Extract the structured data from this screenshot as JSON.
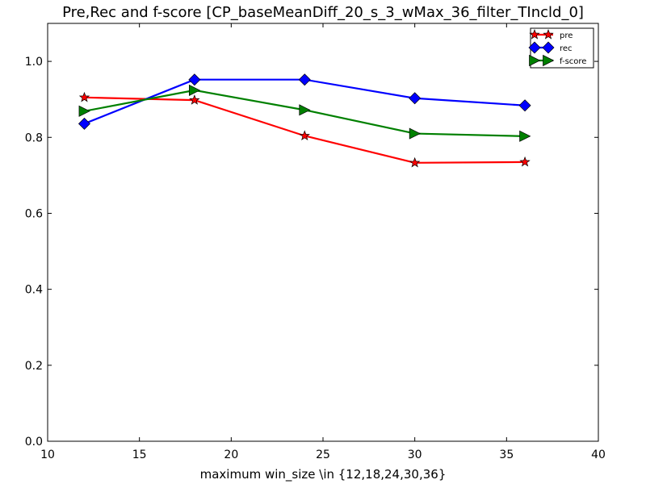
{
  "chart_data": {
    "type": "line",
    "title": "Pre,Rec and f-score [CP_baseMeanDiff_20_s_3_wMax_36_filter_TIncld_0]",
    "xlabel": "maximum win_size \\in {12,18,24,30,36}",
    "ylabel": "",
    "xlim": [
      10,
      40
    ],
    "ylim": [
      0.0,
      1.1
    ],
    "xticks": [
      10,
      15,
      20,
      25,
      30,
      35,
      40
    ],
    "xtick_labels": [
      "10",
      "15",
      "20",
      "25",
      "30",
      "35",
      "40"
    ],
    "yticks": [
      0.0,
      0.2,
      0.4,
      0.6,
      0.8,
      1.0
    ],
    "ytick_labels": [
      "0.0",
      "0.2",
      "0.4",
      "0.6",
      "0.8",
      "1.0"
    ],
    "grid": false,
    "legend_position": "top-right",
    "x": [
      12,
      18,
      24,
      30,
      36
    ],
    "series": [
      {
        "name": "pre",
        "values": [
          0.905,
          0.898,
          0.804,
          0.733,
          0.735
        ],
        "color": "#ff0000",
        "marker": "star"
      },
      {
        "name": "rec",
        "values": [
          0.836,
          0.952,
          0.952,
          0.903,
          0.884
        ],
        "color": "#0000ff",
        "marker": "diamond"
      },
      {
        "name": "f-score",
        "values": [
          0.869,
          0.924,
          0.872,
          0.81,
          0.803
        ],
        "color": "#008000",
        "marker": "triangle-right"
      }
    ]
  }
}
